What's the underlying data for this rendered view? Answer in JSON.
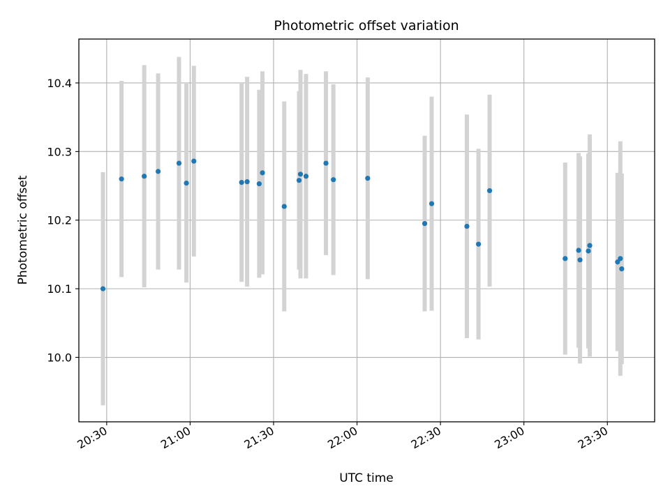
{
  "chart_data": {
    "type": "scatter",
    "title": "Photometric offset variation",
    "xlabel": "UTC time",
    "ylabel": "Photometric offset",
    "x_ticks": [
      "20:30",
      "21:00",
      "21:30",
      "22:00",
      "22:30",
      "23:00",
      "23:30"
    ],
    "y_ticks": [
      "10.0",
      "10.1",
      "10.2",
      "10.3",
      "10.4"
    ],
    "xlim": [
      "20:20",
      "23:47"
    ],
    "ylim": [
      9.906,
      10.464
    ],
    "grid": true,
    "colors": {
      "points": "#1f77b4",
      "errorbars": "#d3d3d3",
      "grid": "#b0b0b0"
    },
    "points": [
      {
        "x": "20:28:40",
        "y": 10.1,
        "yerr": 0.17
      },
      {
        "x": "20:35:20",
        "y": 10.26,
        "yerr": 0.143
      },
      {
        "x": "20:43:30",
        "y": 10.264,
        "yerr": 0.162
      },
      {
        "x": "20:48:30",
        "y": 10.271,
        "yerr": 0.143
      },
      {
        "x": "20:56:00",
        "y": 10.283,
        "yerr": 0.155
      },
      {
        "x": "20:58:40",
        "y": 10.254,
        "yerr": 0.145
      },
      {
        "x": "21:01:20",
        "y": 10.286,
        "yerr": 0.139
      },
      {
        "x": "21:18:30",
        "y": 10.255,
        "yerr": 0.145
      },
      {
        "x": "21:20:30",
        "y": 10.256,
        "yerr": 0.153
      },
      {
        "x": "21:24:50",
        "y": 10.253,
        "yerr": 0.137
      },
      {
        "x": "21:26:00",
        "y": 10.269,
        "yerr": 0.148
      },
      {
        "x": "21:33:50",
        "y": 10.22,
        "yerr": 0.153
      },
      {
        "x": "21:39:10",
        "y": 10.258,
        "yerr": 0.13
      },
      {
        "x": "21:39:40",
        "y": 10.267,
        "yerr": 0.152
      },
      {
        "x": "21:41:40",
        "y": 10.264,
        "yerr": 0.149
      },
      {
        "x": "21:48:50",
        "y": 10.283,
        "yerr": 0.134
      },
      {
        "x": "21:51:30",
        "y": 10.259,
        "yerr": 0.139
      },
      {
        "x": "22:03:50",
        "y": 10.261,
        "yerr": 0.147
      },
      {
        "x": "22:24:20",
        "y": 10.195,
        "yerr": 0.128
      },
      {
        "x": "22:26:50",
        "y": 10.224,
        "yerr": 0.156
      },
      {
        "x": "22:39:30",
        "y": 10.191,
        "yerr": 0.163
      },
      {
        "x": "22:43:40",
        "y": 10.165,
        "yerr": 0.139
      },
      {
        "x": "22:47:40",
        "y": 10.243,
        "yerr": 0.14
      },
      {
        "x": "23:14:50",
        "y": 10.144,
        "yerr": 0.14
      },
      {
        "x": "23:19:40",
        "y": 10.156,
        "yerr": 0.142
      },
      {
        "x": "23:20:10",
        "y": 10.142,
        "yerr": 0.151
      },
      {
        "x": "23:23:10",
        "y": 10.155,
        "yerr": 0.142
      },
      {
        "x": "23:23:40",
        "y": 10.163,
        "yerr": 0.162
      },
      {
        "x": "23:33:40",
        "y": 10.139,
        "yerr": 0.13
      },
      {
        "x": "23:34:40",
        "y": 10.144,
        "yerr": 0.171
      },
      {
        "x": "23:35:10",
        "y": 10.129,
        "yerr": 0.139
      }
    ]
  }
}
